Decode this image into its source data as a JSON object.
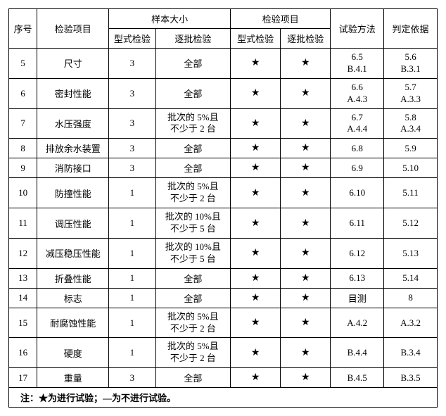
{
  "header": {
    "seq": "序号",
    "item": "检验项目",
    "sample_size": "样本大小",
    "inspection": "检验项目",
    "method": "试验方法",
    "basis": "判定依据",
    "type_test": "型式检验",
    "batch_test": "逐批检验"
  },
  "star": "★",
  "rows": [
    {
      "seq": "5",
      "item": "尺寸",
      "ss_type": "3",
      "ss_batch": "全部",
      "ip_type": "★",
      "ip_batch": "★",
      "method": "6.5\nB.4.1",
      "basis": "5.6\nB.3.1"
    },
    {
      "seq": "6",
      "item": "密封性能",
      "ss_type": "3",
      "ss_batch": "全部",
      "ip_type": "★",
      "ip_batch": "★",
      "method": "6.6\nA.4.3",
      "basis": "5.7\nA.3.3"
    },
    {
      "seq": "7",
      "item": "水压强度",
      "ss_type": "3",
      "ss_batch": "批次的 5%且\n不少于 2 台",
      "ip_type": "★",
      "ip_batch": "★",
      "method": "6.7\nA.4.4",
      "basis": "5.8\nA.3.4"
    },
    {
      "seq": "8",
      "item": "排放余水装置",
      "ss_type": "3",
      "ss_batch": "全部",
      "ip_type": "★",
      "ip_batch": "★",
      "method": "6.8",
      "basis": "5.9"
    },
    {
      "seq": "9",
      "item": "消防接口",
      "ss_type": "3",
      "ss_batch": "全部",
      "ip_type": "★",
      "ip_batch": "★",
      "method": "6.9",
      "basis": "5.10"
    },
    {
      "seq": "10",
      "item": "防撞性能",
      "ss_type": "1",
      "ss_batch": "批次的 5%且\n不少于 2 台",
      "ip_type": "★",
      "ip_batch": "★",
      "method": "6.10",
      "basis": "5.11"
    },
    {
      "seq": "11",
      "item": "调压性能",
      "ss_type": "1",
      "ss_batch": "批次的 10%且\n不少于 5 台",
      "ip_type": "★",
      "ip_batch": "★",
      "method": "6.11",
      "basis": "5.12"
    },
    {
      "seq": "12",
      "item": "减压稳压性能",
      "ss_type": "1",
      "ss_batch": "批次的 10%且\n不少于 5 台",
      "ip_type": "★",
      "ip_batch": "★",
      "method": "6.12",
      "basis": "5.13"
    },
    {
      "seq": "13",
      "item": "折叠性能",
      "ss_type": "1",
      "ss_batch": "全部",
      "ip_type": "★",
      "ip_batch": "★",
      "method": "6.13",
      "basis": "5.14"
    },
    {
      "seq": "14",
      "item": "标志",
      "ss_type": "1",
      "ss_batch": "全部",
      "ip_type": "★",
      "ip_batch": "★",
      "method": "目测",
      "basis": "8"
    },
    {
      "seq": "15",
      "item": "耐腐蚀性能",
      "ss_type": "1",
      "ss_batch": "批次的 5%且\n不少于 2 台",
      "ip_type": "★",
      "ip_batch": "★",
      "method": "A.4.2",
      "basis": "A.3.2"
    },
    {
      "seq": "16",
      "item": "硬度",
      "ss_type": "1",
      "ss_batch": "批次的 5%且\n不少于 2 台",
      "ip_type": "★",
      "ip_batch": "★",
      "method": "B.4.4",
      "basis": "B.3.4"
    },
    {
      "seq": "17",
      "item": "重量",
      "ss_type": "3",
      "ss_batch": "全部",
      "ip_type": "★",
      "ip_batch": "★",
      "method": "B.4.5",
      "basis": "B.3.5"
    }
  ],
  "note": "注：★为进行试验；—为不进行试验。"
}
